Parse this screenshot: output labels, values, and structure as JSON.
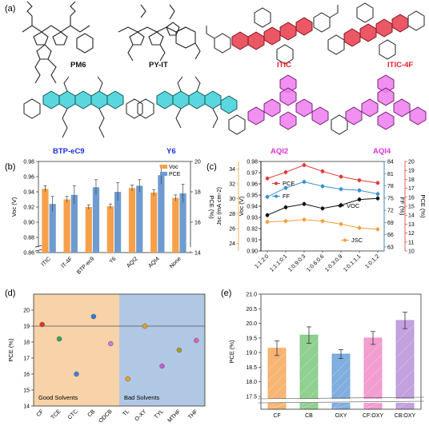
{
  "panel_labels": {
    "a": "(a)",
    "b": "(b)",
    "c": "(c)",
    "d": "(d)",
    "e": "(e)"
  },
  "molecules": [
    {
      "name": "PM6",
      "color": "#111111"
    },
    {
      "name": "PY-IT",
      "color": "#111111"
    },
    {
      "name": "ITIC",
      "color": "#e8202a"
    },
    {
      "name": "ITIC-4F",
      "color": "#e8202a"
    },
    {
      "name": "BTP-eC9",
      "color": "#1a2ee6"
    },
    {
      "name": "Y6",
      "color": "#1a2ee6"
    },
    {
      "name": "AQI2",
      "color": "#e032e0"
    },
    {
      "name": "AQI4",
      "color": "#e032e0"
    }
  ],
  "chart_data": [
    {
      "id": "b",
      "type": "bar",
      "categories": [
        "ITIC",
        "IT-4F",
        "BTP-ec9",
        "Y6",
        "AQI2",
        "AQI4",
        "None"
      ],
      "series": [
        {
          "name": "Voc",
          "axis": "left",
          "color": "#f7a04a",
          "values": [
            0.944,
            0.93,
            0.92,
            0.921,
            0.945,
            0.939,
            0.932
          ],
          "errors": [
            0.004,
            0.004,
            0.003,
            0.003,
            0.004,
            0.004,
            0.004
          ]
        },
        {
          "name": "PCE",
          "axis": "right",
          "color": "#6f9bd0",
          "values": [
            17.2,
            17.8,
            18.3,
            18.0,
            18.4,
            19.1,
            17.9
          ],
          "errors": [
            0.5,
            0.6,
            0.5,
            0.6,
            0.4,
            0.6,
            0.6
          ]
        }
      ],
      "ylabel_left": "Voc (V)",
      "ylabel_right": "PCE (%)",
      "ylim_left": [
        0.86,
        0.98
      ],
      "ylim_right": [
        14,
        20
      ],
      "yticks_left": [
        "0.86",
        "0.88",
        "0.90",
        "0.92",
        "0.94",
        "0.96",
        "0.98"
      ],
      "yticks_right": [
        "14",
        "16",
        "18",
        "20"
      ],
      "legend_position": "top-right"
    },
    {
      "id": "c",
      "type": "line",
      "categories": [
        "1:1:2:0",
        "1:1:1:0:1",
        "1:0.9:0:3",
        "1:0.6:0.6",
        "1:0.3:0.9",
        "1:0.1:1.1",
        "1:0:1.2"
      ],
      "series": [
        {
          "name": "PCE",
          "axis": "PCE (%)",
          "color": "#e03a3a",
          "values": [
            18.1,
            18.8,
            19.6,
            18.9,
            18.3,
            17.9,
            17.6
          ]
        },
        {
          "name": "FF",
          "axis": "FF (%)",
          "color": "#3a8fd0",
          "values": [
            75.3,
            77.5,
            79.0,
            77.9,
            77.2,
            76.9,
            76.0
          ]
        },
        {
          "name": "Voc",
          "axis": "Voc (V)",
          "color": "#111111",
          "values": [
            0.932,
            0.939,
            0.942,
            0.938,
            0.941,
            0.946,
            0.947
          ]
        },
        {
          "name": "Jsc",
          "axis": "Jsc (mA cm-2)",
          "color": "#f0a040",
          "values": [
            26.9,
            27.0,
            27.2,
            27.0,
            26.6,
            26.1,
            25.9
          ]
        }
      ],
      "axes": [
        {
          "label": "Voc (V)",
          "range": [
            0.9,
            0.98
          ],
          "ticks": [
            "0.90",
            "0.91",
            "0.92",
            "0.93",
            "0.94",
            "0.95",
            "0.96",
            "0.97",
            "0.98"
          ],
          "color": "#000000"
        },
        {
          "label": "Jsc (mA cm-2)",
          "range": [
            23,
            35
          ],
          "ticks": [
            "24",
            "26",
            "28",
            "30",
            "32",
            "34"
          ],
          "color": "#f0a040"
        },
        {
          "label": "FF (%)",
          "range": [
            62,
            84
          ],
          "ticks": [
            "63",
            "66",
            "69",
            "72",
            "75",
            "78",
            "81",
            "84"
          ],
          "color": "#3a8fd0"
        },
        {
          "label": "PCE (%)",
          "range": [
            10,
            20
          ],
          "ticks": [
            "10",
            "11",
            "12",
            "13",
            "14",
            "15",
            "16",
            "17",
            "18",
            "19",
            "20"
          ],
          "color": "#e03a3a"
        }
      ],
      "legend_labels": {
        "PCE": "PCE",
        "FF": "FF",
        "Voc": "VOC",
        "Jsc": "JSC"
      }
    },
    {
      "id": "d",
      "type": "scatter",
      "categories": [
        "CF",
        "TCE",
        "CTC",
        "CB",
        "ODCB",
        "TL",
        "O-XY",
        "TYL",
        "MTHF",
        "THF"
      ],
      "values": [
        19.1,
        18.2,
        16.0,
        19.6,
        17.9,
        15.7,
        19.0,
        16.5,
        17.5,
        18.1
      ],
      "errors": [
        0.15,
        0.15,
        0.15,
        0.15,
        0.15,
        0.15,
        0.15,
        0.15,
        0.15,
        0.15
      ],
      "colors": [
        "#e53030",
        "#2aa860",
        "#3f7fd8",
        "#2a7fd8",
        "#c080e0",
        "#f0a020",
        "#e8a020",
        "#c060d0",
        "#a8a020",
        "#e060c0"
      ],
      "ylabel": "PCE (%)",
      "ylim": [
        14,
        21
      ],
      "yticks": [
        "14",
        "15",
        "16",
        "17",
        "18",
        "19",
        "20"
      ],
      "reference_line": 19.0,
      "regions": [
        {
          "label": "Good Solvents",
          "from": 0,
          "to": 4,
          "color": "#f8d2a8"
        },
        {
          "label": "Bad Solvents",
          "from": 5,
          "to": 9,
          "color": "#b0c8e4"
        }
      ]
    },
    {
      "id": "e",
      "type": "bar",
      "categories": [
        "CF",
        "CB",
        "OXY",
        "CF:OXY",
        "CB:OXY"
      ],
      "values": [
        19.15,
        19.6,
        18.95,
        19.5,
        20.1
      ],
      "errors": [
        0.25,
        0.28,
        0.15,
        0.22,
        0.28
      ],
      "colors": [
        "#f4a85a",
        "#7cc87c",
        "#6aa0d8",
        "#f08cc8",
        "#b890d8"
      ],
      "ylabel": "PCE (%)",
      "ylim": [
        17.5,
        21.0
      ],
      "yticks": [
        "17.5",
        "18.0",
        "18.5",
        "19.0",
        "19.5",
        "20.0",
        "20.5",
        "21.0"
      ],
      "axis_break": true
    }
  ]
}
